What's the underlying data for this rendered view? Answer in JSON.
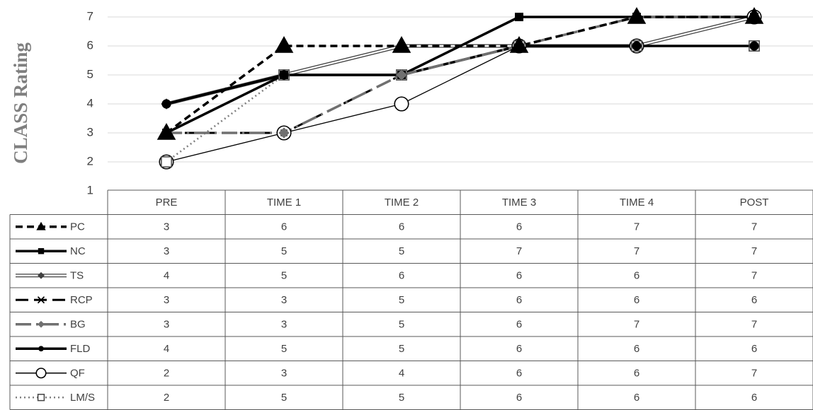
{
  "chart_data": {
    "type": "line",
    "title": "",
    "ylabel": "CLASS Rating",
    "xlabel": "",
    "ylim": [
      1,
      7
    ],
    "yticks": [
      1,
      2,
      3,
      4,
      5,
      6,
      7
    ],
    "grid": true,
    "legend_placement": "data table left column",
    "categories": [
      "PRE",
      "TIME 1",
      "TIME 2",
      "TIME 3",
      "TIME 4",
      "POST"
    ],
    "series": [
      {
        "name": "PC",
        "values": [
          3,
          6,
          6,
          6,
          7,
          7
        ],
        "color": "#000000",
        "dash": "dashed",
        "marker": "triangle"
      },
      {
        "name": "NC",
        "values": [
          3,
          5,
          5,
          7,
          7,
          7
        ],
        "color": "#000000",
        "dash": "solid",
        "marker": "square"
      },
      {
        "name": "TS",
        "values": [
          4,
          5,
          6,
          6,
          6,
          7
        ],
        "color": "#404040",
        "dash": "double",
        "marker": "diamond"
      },
      {
        "name": "RCP",
        "values": [
          3,
          3,
          5,
          6,
          6,
          6
        ],
        "color": "#000000",
        "dash": "longdash",
        "marker": "x"
      },
      {
        "name": "BG",
        "values": [
          3,
          3,
          5,
          6,
          7,
          7
        ],
        "color": "#707070",
        "dash": "dashdot",
        "marker": "diamond"
      },
      {
        "name": "FLD",
        "values": [
          4,
          5,
          5,
          6,
          6,
          6
        ],
        "color": "#000000",
        "dash": "solid",
        "marker": "circle-filled"
      },
      {
        "name": "QF",
        "values": [
          2,
          3,
          4,
          6,
          6,
          7
        ],
        "color": "#000000",
        "dash": "thin",
        "marker": "circle-open"
      },
      {
        "name": "LM/S",
        "values": [
          2,
          5,
          5,
          6,
          6,
          6
        ],
        "color": "#808080",
        "dash": "dotted",
        "marker": "square-open"
      }
    ]
  }
}
